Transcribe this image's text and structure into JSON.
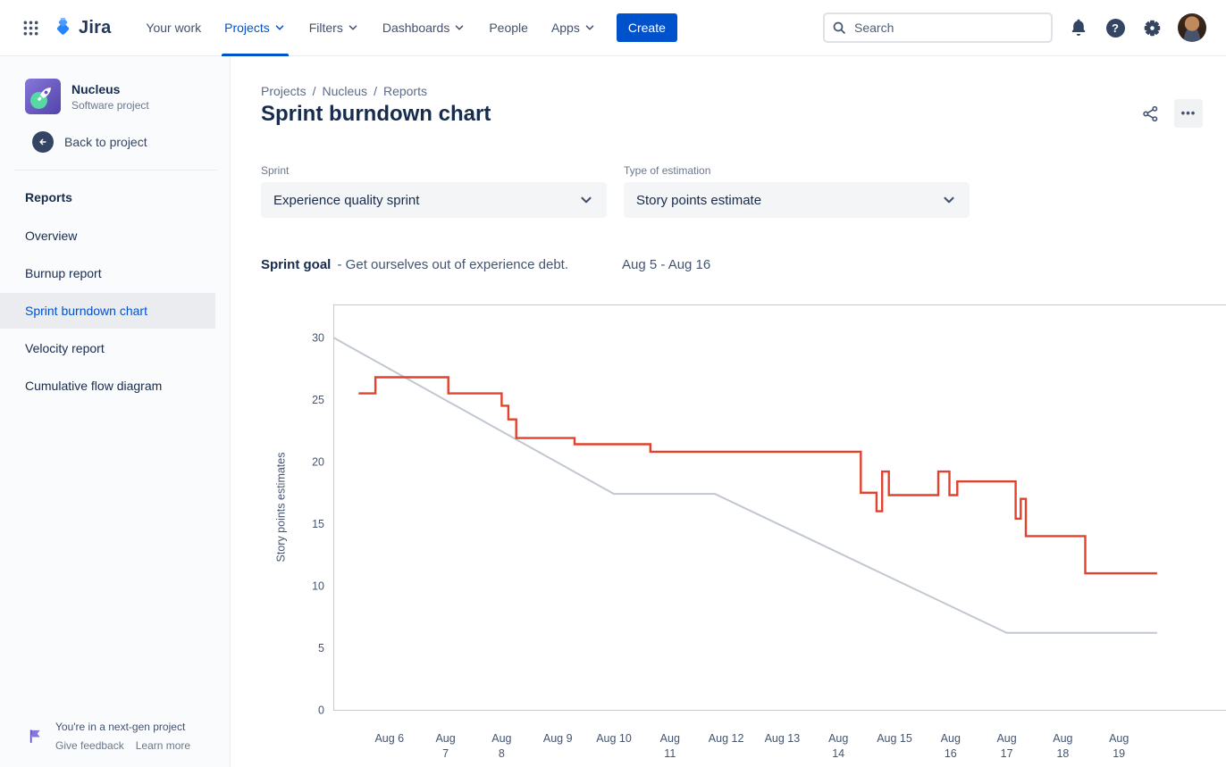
{
  "topbar": {
    "logo_text": "Jira",
    "nav_items": [
      {
        "label": "Your work",
        "chevron": false,
        "active": false
      },
      {
        "label": "Projects",
        "chevron": true,
        "active": true
      },
      {
        "label": "Filters",
        "chevron": true,
        "active": false
      },
      {
        "label": "Dashboards",
        "chevron": true,
        "active": false
      },
      {
        "label": "People",
        "chevron": false,
        "active": false
      },
      {
        "label": "Apps",
        "chevron": true,
        "active": false
      }
    ],
    "create_label": "Create",
    "search_placeholder": "Search"
  },
  "icons": {
    "help_glyph": "?"
  },
  "sidebar": {
    "project_name": "Nucleus",
    "project_type": "Software project",
    "back_label": "Back to project",
    "section_title": "Reports",
    "items": [
      {
        "label": "Overview",
        "selected": false
      },
      {
        "label": "Burnup report",
        "selected": false
      },
      {
        "label": "Sprint burndown chart",
        "selected": true
      },
      {
        "label": "Velocity report",
        "selected": false
      },
      {
        "label": "Cumulative flow diagram",
        "selected": false
      }
    ],
    "footer_text": "You're in a next-gen project",
    "footer_links": [
      "Give feedback",
      "Learn more"
    ]
  },
  "main": {
    "breadcrumb": [
      "Projects",
      "Nucleus",
      "Reports"
    ],
    "breadcrumb_separator": "/",
    "title": "Sprint burndown chart",
    "more_label": "•••",
    "filters": [
      {
        "label": "Sprint",
        "value": "Experience quality sprint"
      },
      {
        "label": "Type of estimation",
        "value": "Story points estimate"
      }
    ],
    "sprint_goal_label": "Sprint goal",
    "sprint_goal_text": "- Get ourselves out of experience debt.",
    "sprint_dates": "Aug 5 - Aug 16"
  },
  "chart_data": {
    "type": "line",
    "title": "Sprint burndown chart",
    "xlabel": "",
    "ylabel": "Story points estimates",
    "x_unit": "days after Aug 5",
    "xlim_days": [
      0,
      15.9
    ],
    "ylim": [
      0,
      32.6
    ],
    "grid": false,
    "legend": "none",
    "axis_color": "#C5CBD2",
    "tick_color": "#44546F",
    "y_ticks": [
      0,
      5,
      10,
      15,
      20,
      25,
      30
    ],
    "x_ticks": [
      {
        "day": 1,
        "label": "Aug 6",
        "two_line": false
      },
      {
        "day": 2,
        "label": "Aug 7",
        "two_line": true
      },
      {
        "day": 3,
        "label": "Aug 8",
        "two_line": true
      },
      {
        "day": 4,
        "label": "Aug 9",
        "two_line": false
      },
      {
        "day": 5,
        "label": "Aug 10",
        "two_line": false
      },
      {
        "day": 6,
        "label": "Aug 11",
        "two_line": true
      },
      {
        "day": 7,
        "label": "Aug 12",
        "two_line": false
      },
      {
        "day": 8,
        "label": "Aug 13",
        "two_line": false
      },
      {
        "day": 9,
        "label": "Aug 14",
        "two_line": true
      },
      {
        "day": 10,
        "label": "Aug 15",
        "two_line": false
      },
      {
        "day": 11,
        "label": "Aug 16",
        "two_line": true
      },
      {
        "day": 12,
        "label": "Aug 17",
        "two_line": true
      },
      {
        "day": 13,
        "label": "Aug 18",
        "two_line": true
      },
      {
        "day": 14,
        "label": "Aug 19",
        "two_line": true
      }
    ],
    "series": [
      {
        "name": "guideline",
        "color": "#C1C7D0",
        "width": 2,
        "points": [
          [
            0,
            30
          ],
          [
            5,
            17.4
          ],
          [
            6.8,
            17.4
          ],
          [
            12,
            6.2
          ],
          [
            14.68,
            6.2
          ]
        ]
      },
      {
        "name": "remaining-story-points",
        "color": "#E2422C",
        "width": 2.4,
        "points": [
          [
            0.45,
            25.5
          ],
          [
            0.75,
            25.5
          ],
          [
            0.75,
            26.8
          ],
          [
            2.05,
            26.8
          ],
          [
            2.05,
            25.5
          ],
          [
            3.0,
            25.5
          ],
          [
            3.0,
            24.5
          ],
          [
            3.12,
            24.5
          ],
          [
            3.12,
            23.4
          ],
          [
            3.26,
            23.4
          ],
          [
            3.26,
            21.9
          ],
          [
            4.3,
            21.9
          ],
          [
            4.3,
            21.4
          ],
          [
            5.65,
            21.4
          ],
          [
            5.65,
            20.8
          ],
          [
            9.4,
            20.8
          ],
          [
            9.4,
            17.5
          ],
          [
            9.68,
            17.5
          ],
          [
            9.68,
            16.0
          ],
          [
            9.78,
            16.0
          ],
          [
            9.78,
            19.2
          ],
          [
            9.9,
            19.2
          ],
          [
            9.9,
            17.3
          ],
          [
            10.78,
            17.3
          ],
          [
            10.78,
            19.2
          ],
          [
            10.98,
            19.2
          ],
          [
            10.98,
            17.3
          ],
          [
            11.12,
            17.3
          ],
          [
            11.12,
            18.4
          ],
          [
            12.16,
            18.4
          ],
          [
            12.16,
            15.4
          ],
          [
            12.25,
            15.4
          ],
          [
            12.25,
            17.0
          ],
          [
            12.34,
            17.0
          ],
          [
            12.34,
            14.0
          ],
          [
            13.4,
            14.0
          ],
          [
            13.4,
            11.0
          ],
          [
            14.68,
            11.0
          ]
        ]
      }
    ]
  },
  "colors": {
    "accent": "#0052CC",
    "selected_bg": "#EBECF0",
    "field_bg": "#F4F5F7",
    "chart_red": "#E2422C",
    "chart_gray": "#C1C7D0",
    "text": "#172B4D",
    "muted": "#6B778C"
  }
}
